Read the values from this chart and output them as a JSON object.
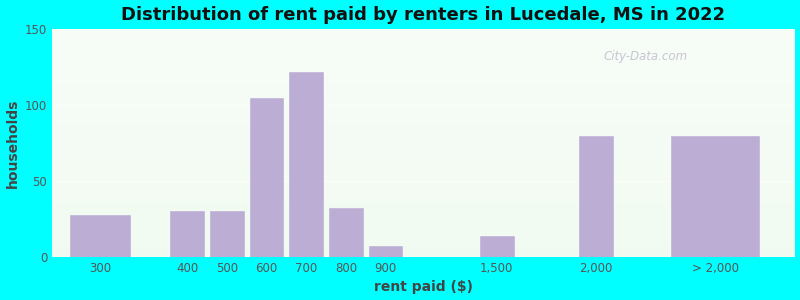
{
  "title": "Distribution of rent paid by renters in Lucedale, MS in 2022",
  "xlabel": "rent paid ($)",
  "ylabel": "households",
  "bar_labels": [
    "300",
    "400",
    "500",
    "600",
    "700",
    "800",
    "900",
    "1,500",
    "2,000",
    "> 2,000"
  ],
  "bar_positions": [
    1.0,
    3.2,
    4.2,
    5.2,
    6.2,
    7.2,
    8.2,
    11.0,
    13.5,
    16.5
  ],
  "bar_heights": [
    28,
    30,
    30,
    105,
    122,
    32,
    7,
    14,
    80,
    80
  ],
  "bar_widths": [
    1.5,
    0.85,
    0.85,
    0.85,
    0.85,
    0.85,
    0.85,
    0.85,
    0.85,
    2.2
  ],
  "bar_color": "#bbadd4",
  "bar_edgecolor": "#bbadd4",
  "ylim": [
    0,
    150
  ],
  "yticks": [
    0,
    50,
    100,
    150
  ],
  "xlim": [
    -0.2,
    18.5
  ],
  "outer_bg": "#00ffff",
  "plot_bg": "#eaf5ea",
  "title_fontsize": 13,
  "axis_label_fontsize": 10,
  "tick_fontsize": 8.5,
  "watermark_text": "City-Data.com"
}
